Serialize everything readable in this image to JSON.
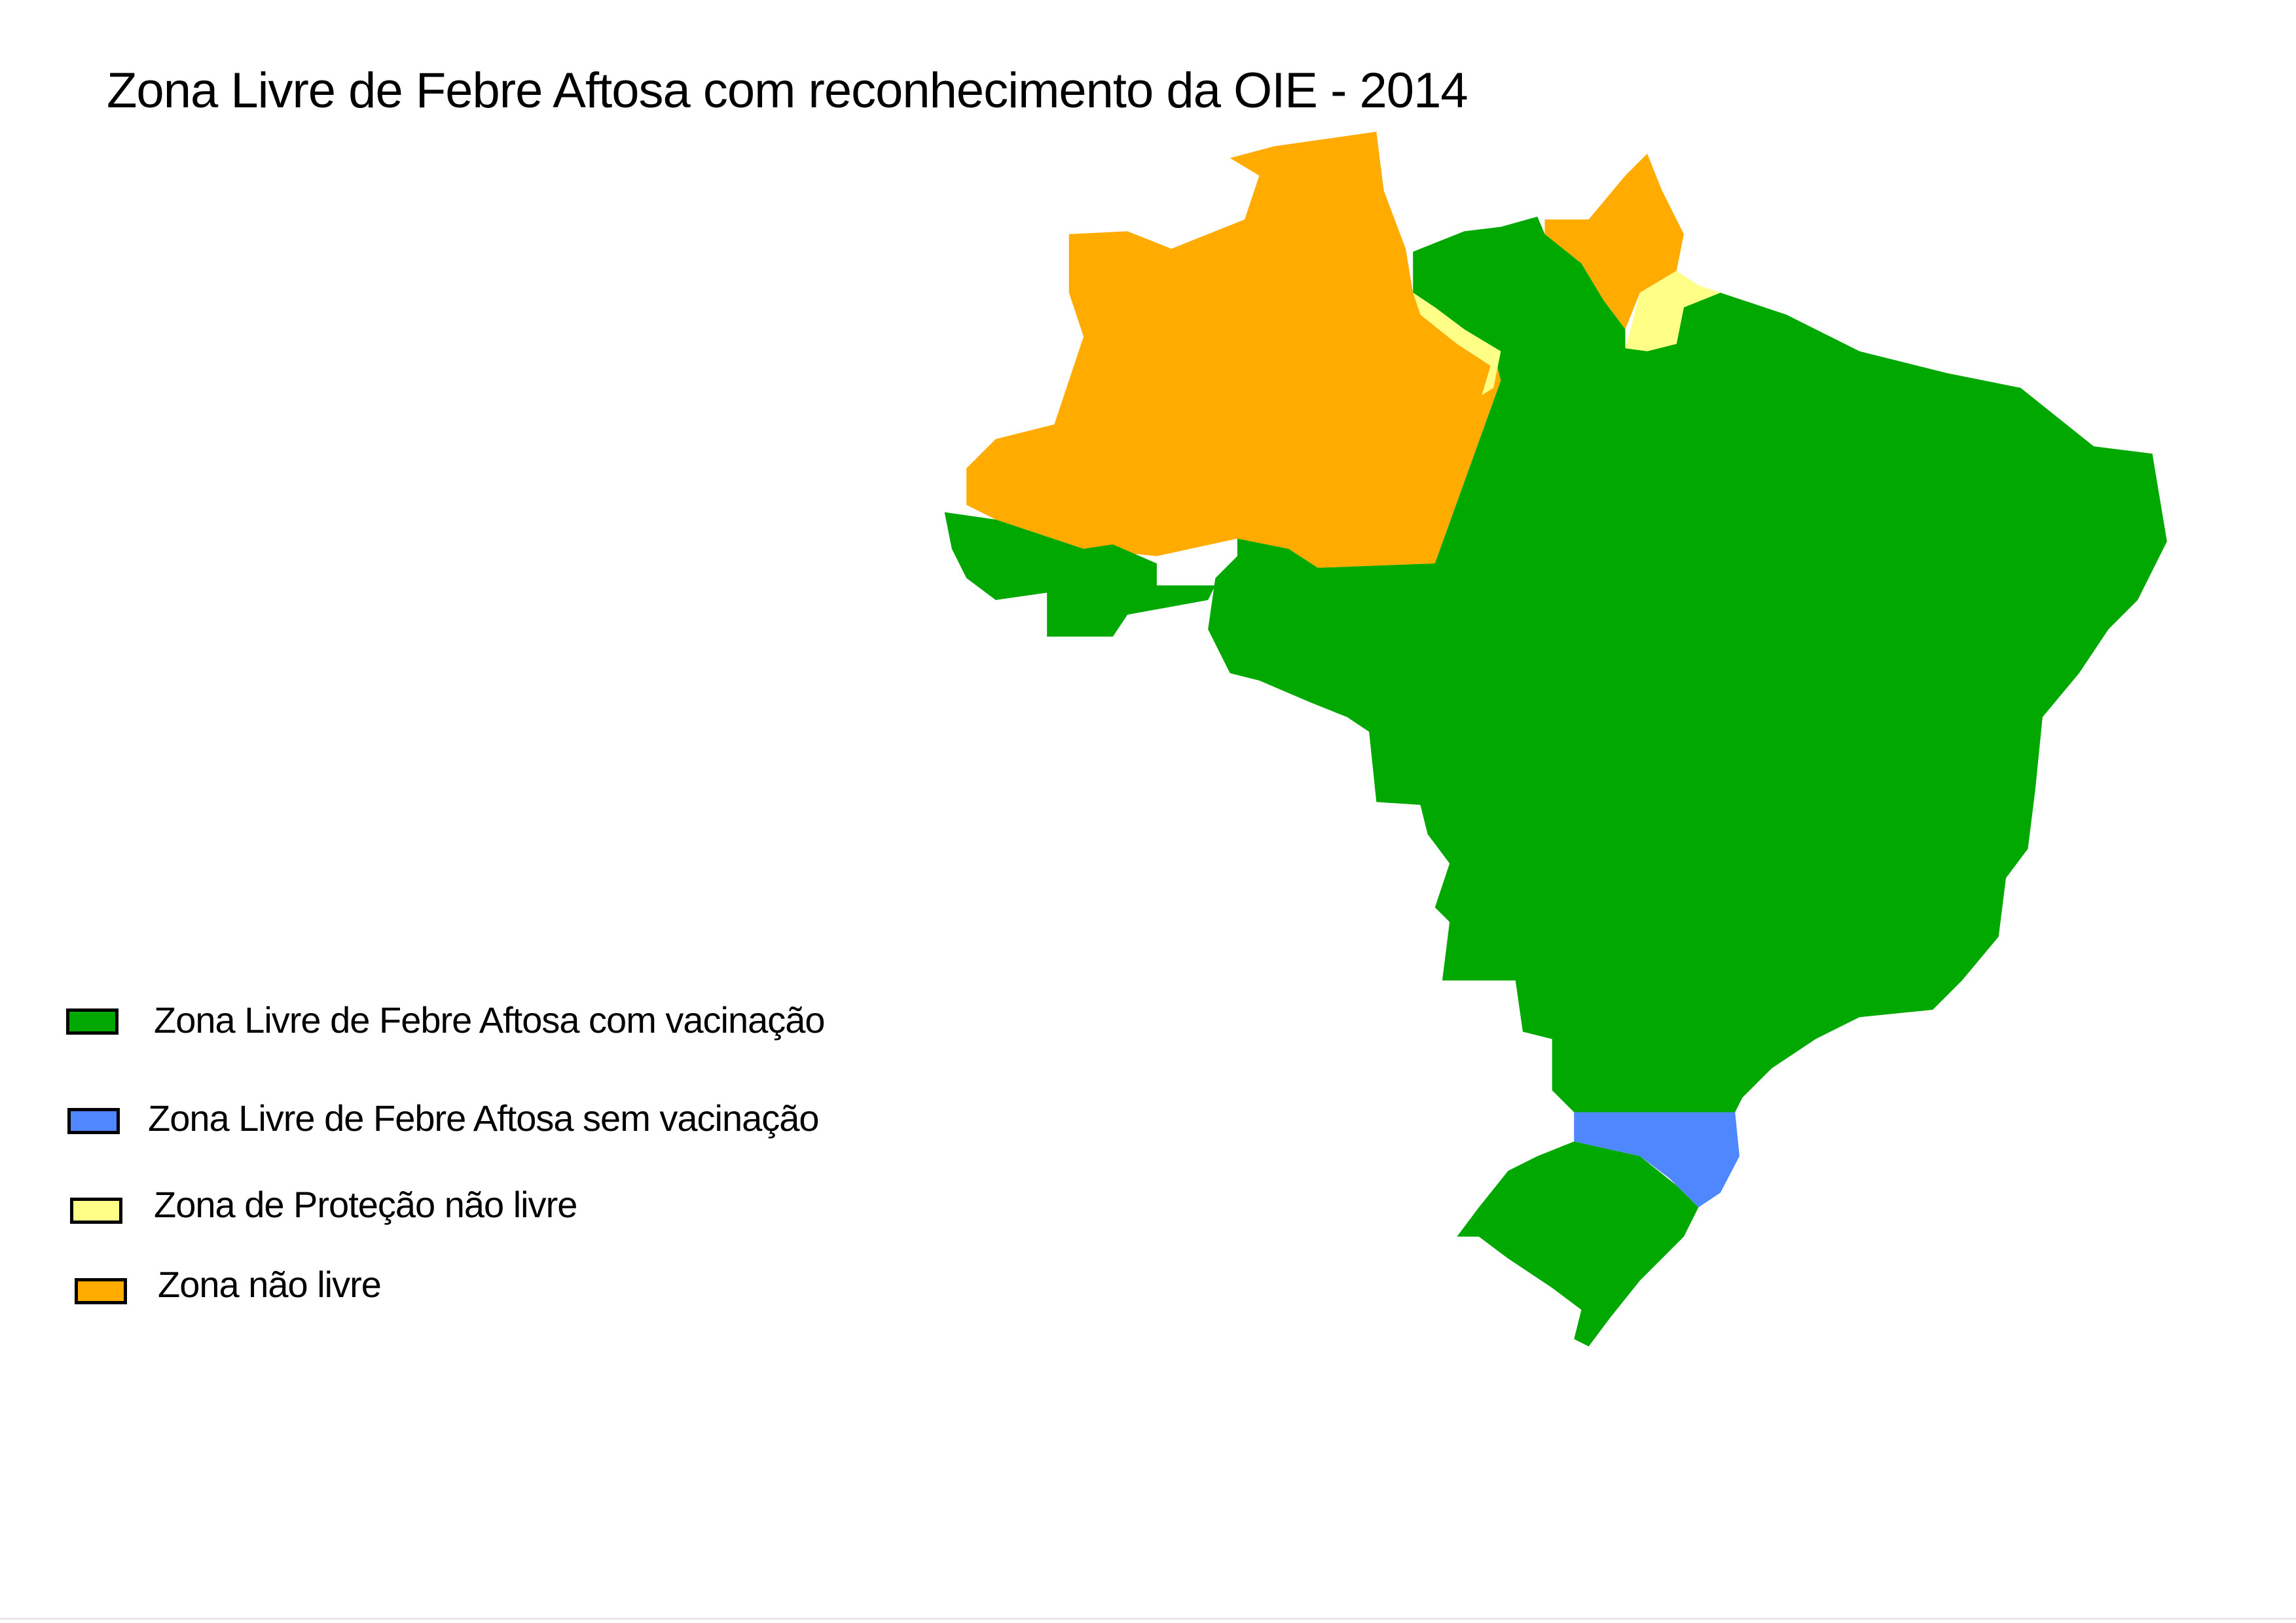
{
  "title": "Zona Livre de Febre Aftosa com reconhecimento da OIE - 2014",
  "legend": [
    {
      "label": "Zona Livre de Febre Aftosa com vacinação",
      "color": "#00a800"
    },
    {
      "label": "Zona Livre de Febre Aftosa sem vacinação",
      "color": "#4f87ff"
    },
    {
      "label": "Zona de Proteção não livre",
      "color": "#ffff88"
    },
    {
      "label": "Zona não livre",
      "color": "#ffab00"
    }
  ]
}
